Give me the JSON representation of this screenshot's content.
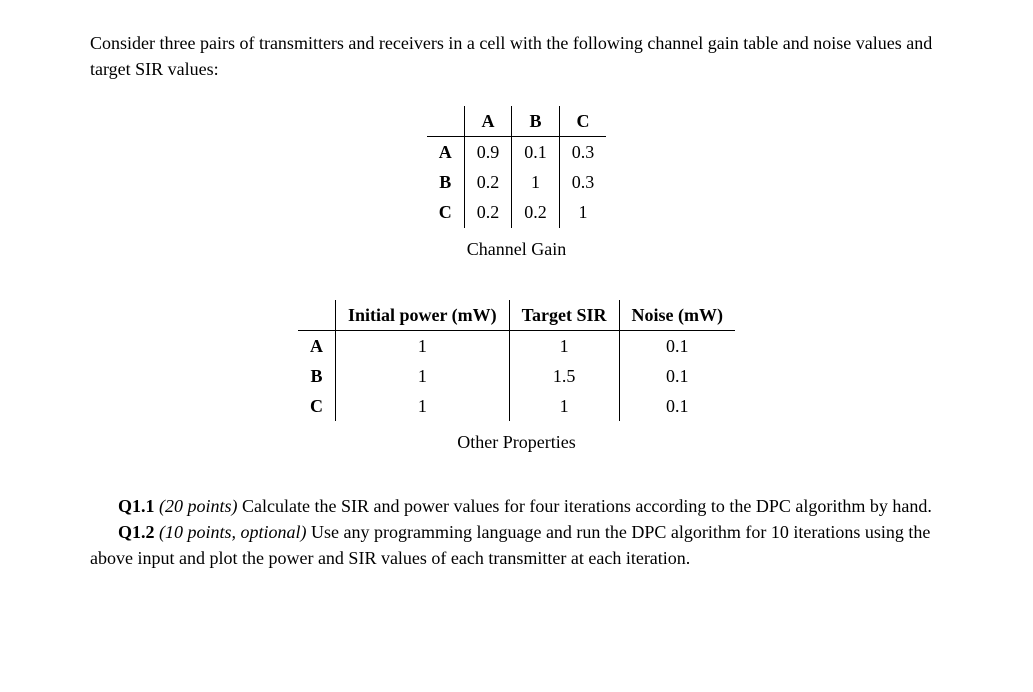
{
  "intro": "Consider three pairs of transmitters and receivers in a cell with the following channel gain table and noise values and target SIR values:",
  "gainTable": {
    "caption": "Channel Gain",
    "colHeaders": [
      "A",
      "B",
      "C"
    ],
    "rows": [
      {
        "label": "A",
        "values": [
          "0.9",
          "0.1",
          "0.3"
        ]
      },
      {
        "label": "B",
        "values": [
          "0.2",
          "1",
          "0.3"
        ]
      },
      {
        "label": "C",
        "values": [
          "0.2",
          "0.2",
          "1"
        ]
      }
    ]
  },
  "propsTable": {
    "caption": "Other Properties",
    "colHeaders": [
      "Initial power (mW)",
      "Target SIR",
      "Noise (mW)"
    ],
    "rows": [
      {
        "label": "A",
        "values": [
          "1",
          "1",
          "0.1"
        ]
      },
      {
        "label": "B",
        "values": [
          "1",
          "1.5",
          "0.1"
        ]
      },
      {
        "label": "C",
        "values": [
          "1",
          "1",
          "0.1"
        ]
      }
    ]
  },
  "questions": {
    "q1": {
      "label": "Q1.1",
      "points": "(20 points)",
      "text": " Calculate the SIR and power values for four iterations according to the DPC algorithm by hand."
    },
    "q2": {
      "label": "Q1.2",
      "points": "(10 points, optional)",
      "text": " Use any programming language and run the DPC algorithm for 10 iterations using the above input and plot the power and SIR values of each transmitter at each iteration."
    }
  }
}
